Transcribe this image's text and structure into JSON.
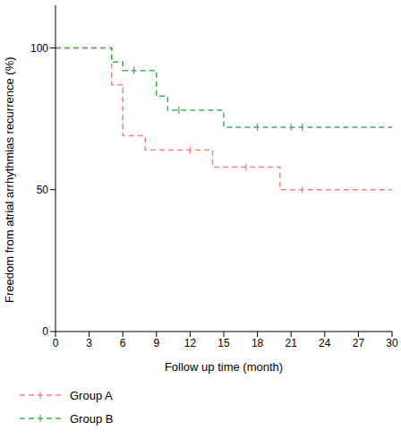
{
  "chart_data": {
    "type": "survival",
    "x_label": "Follow up time (month)",
    "y_label": "Freedom from atrial arrhythmias recurrence (%)",
    "xlim": [
      0,
      30
    ],
    "xticks": [
      0,
      3,
      6,
      9,
      12,
      15,
      18,
      21,
      24,
      27,
      30
    ],
    "ylim": [
      0,
      115
    ],
    "yticks": [
      0,
      50,
      100
    ],
    "grid": false,
    "legend": "bottom left",
    "line_style": "dashed",
    "series": [
      {
        "name": "Group A",
        "color": "#f4837d",
        "x": [
          0,
          5,
          6,
          8,
          14,
          20,
          30
        ],
        "values": [
          100,
          87,
          69,
          64,
          58,
          50,
          50
        ],
        "censored": {
          "x": [
            12,
            17,
            22
          ],
          "values": [
            64,
            58,
            50
          ]
        }
      },
      {
        "name": "Group B",
        "color": "#3fae55",
        "x": [
          0,
          5,
          6,
          9,
          10,
          15,
          30
        ],
        "values": [
          100,
          95,
          92,
          83,
          78,
          72,
          72
        ],
        "censored": {
          "x": [
            7,
            11,
            18,
            21,
            22
          ],
          "values": [
            92,
            78,
            72,
            72,
            72
          ]
        }
      }
    ]
  }
}
